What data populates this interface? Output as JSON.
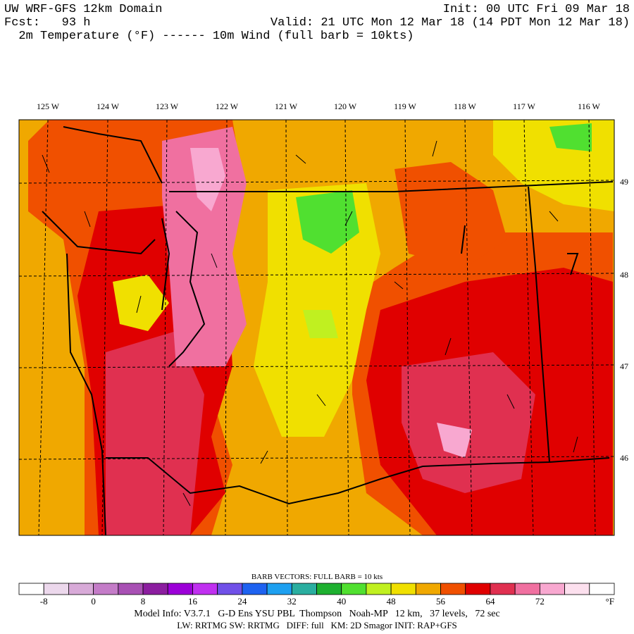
{
  "header": {
    "left": [
      "UW WRF-GFS 12km Domain",
      "Fcst:   93 h",
      "  2m Temperature (°F) ------ 10m Wind (full barb = 10kts)"
    ],
    "right": [
      "Init: 00 UTC Fri 09 Mar 18",
      "Valid: 21 UTC Mon 12 Mar 18 (14 PDT Mon 12 Mar 18)"
    ]
  },
  "map": {
    "longitude_labels": [
      "125 W",
      "124 W",
      "123 W",
      "122 W",
      "121 W",
      "120 W",
      "119 W",
      "118 W",
      "117 W",
      "116 W"
    ],
    "latitude_labels": [
      "49",
      "48",
      "47",
      "46"
    ]
  },
  "colorbar": {
    "title": "BARB VECTORS:  FULL BARB = 10 kts",
    "colors": [
      "#ffffff",
      "#ecd8ec",
      "#d8aad8",
      "#c47cc8",
      "#a850b4",
      "#8c1ea0",
      "#9c00d8",
      "#c030f0",
      "#7050e8",
      "#1e62f0",
      "#1ea0f0",
      "#2aaea0",
      "#1eb030",
      "#50e030",
      "#c0f020",
      "#f0e000",
      "#f0a800",
      "#f05000",
      "#e00000",
      "#e03050",
      "#f070a0",
      "#f8a8d0",
      "#fce0ee",
      "#ffffff"
    ],
    "labels": [
      "-8",
      "0",
      "8",
      "16",
      "24",
      "32",
      "40",
      "48",
      "56",
      "64",
      "72"
    ],
    "unit": "°F"
  },
  "footer": [
    "Model Info: V3.7.1   G-D Ens YSU PBL  Thompson   Noah-MP   12 km,   37 levels,   72 sec",
    "LW: RRTMG SW: RRTMG   DIFF: full   KM: 2D Smagor INIT: RAP+GFS"
  ]
}
